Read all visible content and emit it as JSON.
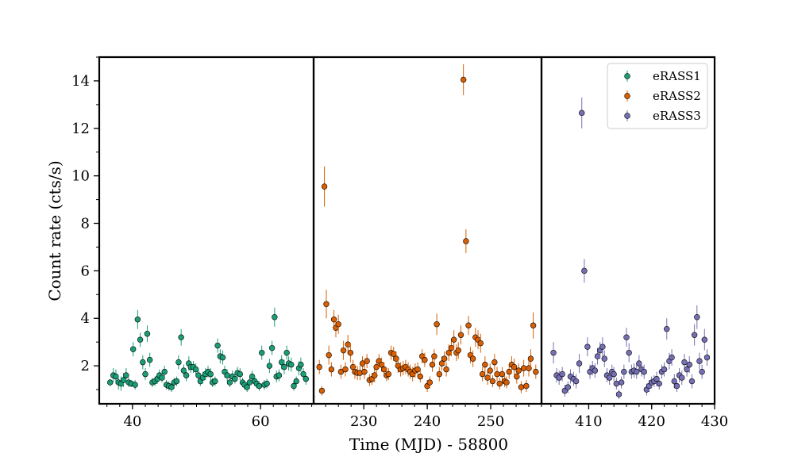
{
  "chart_data": {
    "type": "scatter",
    "xlabel": "Time (MJD) - 58800",
    "ylabel": "Count rate (cts/s)",
    "ylim": [
      0.4,
      15
    ],
    "yticks": [
      2,
      4,
      6,
      8,
      10,
      12,
      14
    ],
    "legend": {
      "placement": "top-right",
      "entries": [
        "eRASS1",
        "eRASS2",
        "eRASS3"
      ]
    },
    "grid": false,
    "panels": [
      {
        "series": "eRASS1",
        "xlim": [
          34.8,
          68.3
        ],
        "xticks": [
          40,
          60
        ],
        "xtick_minor_step": 2
      },
      {
        "series": "eRASS2",
        "xlim": [
          222.1,
          258.0
        ],
        "xticks": [
          230,
          240,
          250
        ],
        "xtick_minor_step": 2
      },
      {
        "series": "eRASS3",
        "xlim": [
          402.5,
          430.0
        ],
        "xticks": [
          410,
          420,
          430
        ],
        "xtick_minor_step": 2
      }
    ],
    "series": [
      {
        "name": "eRASS1",
        "color": "#1b9e77",
        "x": [
          36.5,
          37.0,
          37.4,
          37.8,
          38.2,
          38.6,
          39.0,
          39.4,
          39.8,
          40.1,
          40.4,
          40.8,
          41.2,
          41.6,
          42.0,
          42.3,
          42.7,
          43.1,
          43.5,
          43.9,
          44.2,
          44.6,
          45.0,
          45.3,
          45.7,
          46.1,
          46.5,
          46.9,
          47.2,
          47.6,
          48.0,
          48.4,
          48.8,
          49.1,
          49.5,
          49.9,
          50.3,
          50.6,
          51.0,
          51.4,
          51.8,
          52.2,
          52.5,
          52.9,
          53.3,
          53.7,
          54.1,
          54.4,
          54.8,
          55.2,
          55.6,
          56.0,
          56.4,
          56.8,
          57.2,
          57.5,
          57.9,
          58.3,
          58.7,
          59.1,
          59.4,
          59.8,
          60.2,
          60.6,
          61.0,
          61.4,
          61.8,
          62.2,
          62.5,
          62.9,
          63.3,
          63.7,
          64.1,
          64.4,
          64.8,
          65.2,
          65.6,
          66.0,
          66.3,
          66.7,
          67.1
        ],
        "y": [
          1.3,
          1.6,
          1.55,
          1.3,
          1.25,
          1.4,
          1.6,
          1.3,
          1.25,
          2.7,
          1.2,
          3.95,
          3.1,
          2.15,
          1.65,
          3.35,
          2.25,
          1.3,
          1.35,
          1.45,
          1.6,
          1.5,
          1.75,
          1.2,
          1.15,
          1.1,
          1.3,
          1.35,
          2.15,
          3.2,
          1.8,
          1.6,
          2.1,
          1.95,
          1.95,
          1.85,
          1.6,
          1.35,
          1.5,
          1.65,
          1.75,
          1.65,
          1.3,
          1.35,
          2.85,
          2.4,
          2.35,
          1.75,
          1.6,
          1.3,
          1.55,
          1.45,
          1.7,
          1.65,
          1.3,
          1.2,
          1.1,
          1.3,
          1.55,
          1.35,
          1.25,
          1.15,
          2.55,
          1.2,
          1.25,
          2.0,
          2.75,
          4.05,
          1.55,
          1.6,
          2.15,
          1.95,
          2.55,
          2.1,
          2.05,
          1.15,
          1.35,
          1.9,
          2.05,
          1.65,
          1.45
        ],
        "err": [
          0.15,
          0.3,
          0.3,
          0.3,
          0.3,
          0.3,
          0.3,
          0.2,
          0.15,
          0.3,
          0.2,
          0.4,
          0.3,
          0.3,
          0.25,
          0.35,
          0.3,
          0.2,
          0.2,
          0.2,
          0.25,
          0.2,
          0.25,
          0.2,
          0.2,
          0.2,
          0.2,
          0.2,
          0.3,
          0.35,
          0.25,
          0.25,
          0.3,
          0.25,
          0.25,
          0.25,
          0.25,
          0.2,
          0.25,
          0.25,
          0.25,
          0.25,
          0.2,
          0.2,
          0.3,
          0.3,
          0.3,
          0.25,
          0.25,
          0.2,
          0.25,
          0.2,
          0.25,
          0.25,
          0.2,
          0.2,
          0.2,
          0.2,
          0.25,
          0.2,
          0.2,
          0.2,
          0.3,
          0.2,
          0.2,
          0.3,
          0.3,
          0.4,
          0.25,
          0.25,
          0.3,
          0.3,
          0.3,
          0.3,
          0.3,
          0.2,
          0.2,
          0.3,
          0.3,
          0.25,
          0.25
        ]
      },
      {
        "name": "eRASS2",
        "color": "#d95f02",
        "x": [
          223.0,
          223.4,
          223.8,
          224.1,
          224.5,
          224.9,
          225.3,
          225.6,
          226.0,
          226.4,
          226.8,
          227.1,
          227.5,
          227.9,
          228.3,
          228.6,
          229.0,
          229.4,
          229.8,
          230.1,
          230.5,
          230.9,
          231.3,
          231.7,
          232.0,
          232.4,
          232.8,
          233.2,
          233.6,
          233.9,
          234.3,
          234.7,
          235.1,
          235.4,
          235.8,
          236.2,
          236.6,
          237.0,
          237.3,
          237.7,
          238.1,
          238.5,
          238.9,
          239.2,
          239.6,
          240.0,
          240.4,
          240.8,
          241.1,
          241.5,
          241.9,
          242.3,
          242.7,
          243.0,
          243.4,
          243.8,
          244.2,
          244.6,
          244.9,
          245.3,
          245.7,
          246.1,
          246.5,
          246.8,
          247.2,
          247.6,
          248.0,
          248.4,
          248.7,
          249.1,
          249.5,
          249.9,
          250.3,
          250.6,
          251.0,
          251.4,
          251.8,
          252.2,
          252.5,
          252.9,
          253.3,
          253.7,
          254.1,
          254.4,
          254.8,
          255.2,
          255.6,
          256.0,
          256.3,
          256.7,
          257.1
        ],
        "y": [
          1.95,
          0.95,
          9.55,
          4.6,
          2.45,
          1.85,
          3.95,
          3.6,
          3.75,
          1.75,
          2.65,
          1.85,
          2.9,
          2.55,
          1.95,
          1.75,
          1.7,
          1.7,
          2.1,
          1.75,
          2.2,
          1.4,
          1.45,
          1.6,
          1.95,
          2.2,
          2.05,
          1.85,
          1.6,
          1.65,
          2.55,
          2.5,
          2.3,
          2.0,
          1.85,
          1.9,
          1.95,
          1.85,
          1.75,
          1.65,
          1.8,
          1.85,
          1.55,
          2.4,
          2.25,
          1.15,
          1.3,
          2.05,
          2.4,
          3.75,
          1.65,
          2.1,
          2.3,
          1.85,
          2.55,
          2.75,
          3.1,
          2.55,
          2.65,
          3.3,
          14.05,
          7.25,
          3.7,
          2.45,
          2.3,
          3.2,
          3.1,
          2.95,
          1.65,
          2.05,
          1.5,
          1.8,
          1.35,
          2.15,
          1.65,
          1.25,
          1.65,
          1.35,
          1.3,
          1.75,
          2.05,
          1.95,
          1.55,
          1.8,
          1.1,
          1.9,
          1.15,
          1.9,
          2.3,
          3.7,
          1.75
        ],
        "err": [
          0.3,
          0.2,
          0.85,
          0.6,
          0.4,
          0.3,
          0.4,
          0.4,
          0.4,
          0.3,
          0.4,
          0.3,
          0.4,
          0.4,
          0.3,
          0.3,
          0.3,
          0.3,
          0.3,
          0.3,
          0.3,
          0.25,
          0.25,
          0.3,
          0.3,
          0.3,
          0.3,
          0.3,
          0.25,
          0.25,
          0.3,
          0.3,
          0.3,
          0.3,
          0.3,
          0.3,
          0.3,
          0.3,
          0.3,
          0.3,
          0.3,
          0.3,
          0.25,
          0.3,
          0.3,
          0.25,
          0.25,
          0.3,
          0.3,
          0.45,
          0.3,
          0.3,
          0.3,
          0.3,
          0.35,
          0.35,
          0.4,
          0.35,
          0.35,
          0.4,
          0.65,
          0.5,
          0.4,
          0.35,
          0.35,
          0.4,
          0.4,
          0.4,
          0.3,
          0.35,
          0.3,
          0.3,
          0.25,
          0.35,
          0.3,
          0.25,
          0.3,
          0.25,
          0.25,
          0.3,
          0.35,
          0.35,
          0.3,
          0.3,
          0.25,
          0.35,
          0.25,
          0.35,
          0.4,
          0.55,
          0.3
        ]
      },
      {
        "name": "eRASS3",
        "color": "#7570b3",
        "x": [
          404.4,
          404.9,
          405.3,
          405.8,
          406.2,
          406.7,
          407.1,
          407.6,
          408.0,
          408.5,
          408.9,
          409.3,
          409.8,
          410.2,
          410.6,
          411.0,
          411.4,
          411.8,
          412.2,
          412.5,
          412.9,
          413.3,
          413.7,
          414.0,
          414.4,
          414.8,
          415.2,
          415.6,
          416.0,
          416.4,
          416.8,
          417.2,
          417.6,
          418.0,
          418.4,
          418.8,
          419.2,
          419.6,
          420.0,
          420.4,
          420.8,
          421.2,
          421.6,
          422.0,
          422.4,
          422.8,
          423.2,
          423.6,
          424.0,
          424.4,
          424.8,
          425.2,
          425.6,
          426.0,
          426.4,
          426.8,
          427.2,
          427.6,
          428.0,
          428.4,
          428.8
        ],
        "y": [
          2.55,
          1.6,
          1.5,
          1.65,
          0.95,
          1.1,
          1.55,
          1.45,
          1.35,
          2.1,
          12.65,
          6.0,
          2.8,
          1.75,
          1.9,
          1.8,
          2.4,
          2.65,
          2.8,
          2.3,
          1.6,
          1.5,
          1.75,
          1.65,
          1.25,
          0.8,
          1.3,
          1.75,
          3.2,
          2.55,
          1.75,
          1.8,
          1.75,
          2.1,
          1.85,
          1.75,
          1.0,
          1.15,
          1.3,
          1.35,
          1.45,
          1.25,
          1.75,
          1.85,
          3.55,
          2.2,
          2.35,
          1.35,
          1.15,
          1.6,
          1.5,
          2.15,
          1.85,
          2.05,
          1.35,
          3.3,
          4.05,
          2.2,
          1.75,
          3.1,
          2.35
        ],
        "err": [
          0.45,
          0.3,
          0.3,
          0.3,
          0.25,
          0.25,
          0.3,
          0.3,
          0.3,
          0.4,
          0.65,
          0.5,
          0.4,
          0.3,
          0.3,
          0.3,
          0.35,
          0.35,
          0.4,
          0.35,
          0.3,
          0.3,
          0.3,
          0.3,
          0.25,
          0.2,
          0.25,
          0.3,
          0.4,
          0.4,
          0.3,
          0.3,
          0.3,
          0.35,
          0.3,
          0.3,
          0.25,
          0.25,
          0.25,
          0.25,
          0.3,
          0.25,
          0.3,
          0.3,
          0.45,
          0.35,
          0.35,
          0.3,
          0.25,
          0.3,
          0.3,
          0.35,
          0.3,
          0.35,
          0.3,
          0.45,
          0.5,
          0.35,
          0.3,
          0.45,
          0.35
        ]
      }
    ]
  }
}
